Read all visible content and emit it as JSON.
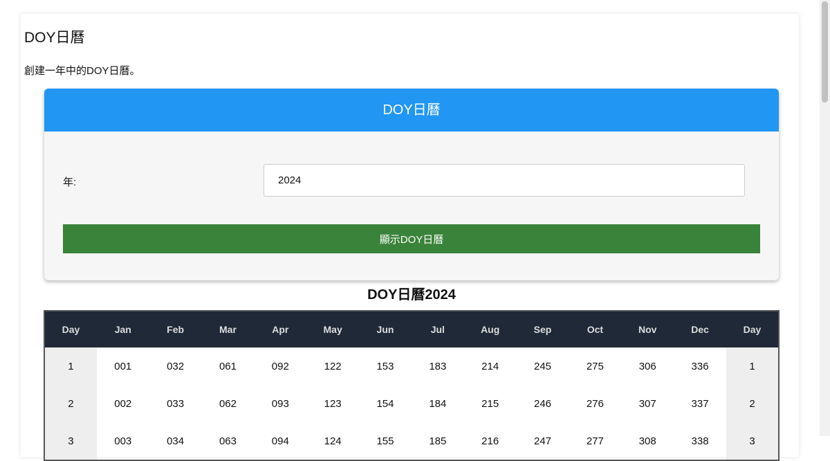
{
  "page": {
    "title": "DOY日曆",
    "description": "創建一年中的DOY日曆。"
  },
  "form": {
    "header": "DOY日曆",
    "year_label": "年:",
    "year_value": "2024",
    "submit_label": "顯示DOY日曆",
    "header_color": "#2196f3",
    "button_color": "#3a833a"
  },
  "calendar": {
    "title": "DOY日曆2024",
    "columns": [
      "Day",
      "Jan",
      "Feb",
      "Mar",
      "Apr",
      "May",
      "Jun",
      "Jul",
      "Aug",
      "Sep",
      "Oct",
      "Nov",
      "Dec",
      "Day"
    ],
    "rows": [
      [
        "1",
        "001",
        "032",
        "061",
        "092",
        "122",
        "153",
        "183",
        "214",
        "245",
        "275",
        "306",
        "336",
        "1"
      ],
      [
        "2",
        "002",
        "033",
        "062",
        "093",
        "123",
        "154",
        "184",
        "215",
        "246",
        "276",
        "307",
        "337",
        "2"
      ],
      [
        "3",
        "003",
        "034",
        "063",
        "094",
        "124",
        "155",
        "185",
        "216",
        "247",
        "277",
        "308",
        "338",
        "3"
      ]
    ]
  }
}
